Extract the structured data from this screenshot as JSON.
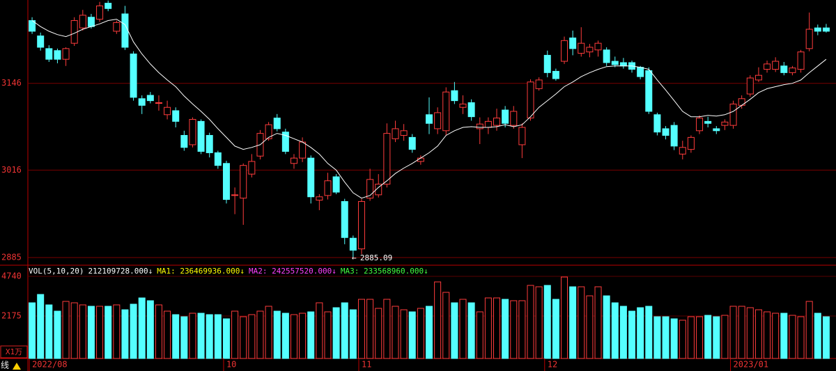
{
  "chart_data": [
    {
      "type": "candlestick",
      "up_color": "#ff3c3c",
      "down_color": "#54ffff",
      "xlim": [
        -0.5,
        94.5
      ],
      "ylim": [
        2874.6,
        3270.8
      ],
      "yticks": [
        3146,
        3016,
        2885
      ],
      "grid": true,
      "open": [
        3240,
        3217,
        3198,
        3195,
        3182,
        3206,
        3229,
        3245,
        3242,
        3266,
        3224,
        3250,
        3190,
        3123,
        3128,
        3116,
        3099,
        3105,
        3068,
        3054,
        3089,
        3068,
        3042,
        3026,
        2978,
        2974,
        3010,
        3037,
        3063,
        3094,
        3073,
        3026,
        3034,
        3034,
        2971,
        2978,
        3006,
        2969,
        2914,
        2898,
        2974,
        2979,
        2995,
        3063,
        3068,
        3065,
        3029,
        3099,
        3078,
        3075,
        3135,
        3110,
        3117,
        3078,
        3080,
        3083,
        3106,
        3083,
        3054,
        3094,
        3138,
        3188,
        3164,
        3179,
        3214,
        3191,
        3193,
        3196,
        3196,
        3179,
        3177,
        3177,
        3170,
        3165,
        3099,
        3078,
        3083,
        3040,
        3047,
        3075,
        3089,
        3078,
        3083,
        3083,
        3113,
        3130,
        3151,
        3167,
        3167,
        3172,
        3162,
        3167,
        3198,
        3229,
        3229
      ],
      "high": [
        3245,
        3222,
        3203,
        3198,
        3200,
        3245,
        3256,
        3250,
        3268,
        3270,
        3240,
        3262,
        3194,
        3128,
        3133,
        3128,
        3120,
        3110,
        3075,
        3095,
        3092,
        3072,
        3045,
        3030,
        2990,
        3026,
        3040,
        3076,
        3088,
        3100,
        3078,
        3040,
        3065,
        3038,
        2980,
        3012,
        3010,
        2973,
        2918,
        2973,
        3018,
        3010,
        3086,
        3090,
        3085,
        3070,
        3038,
        3125,
        3110,
        3140,
        3148,
        3128,
        3122,
        3095,
        3095,
        3108,
        3112,
        3112,
        3086,
        3152,
        3155,
        3195,
        3168,
        3216,
        3225,
        3230,
        3205,
        3210,
        3200,
        3186,
        3184,
        3180,
        3172,
        3170,
        3102,
        3082,
        3088,
        3060,
        3068,
        3098,
        3096,
        3082,
        3092,
        3120,
        3128,
        3158,
        3170,
        3180,
        3185,
        3178,
        3172,
        3196,
        3252,
        3234,
        3235
      ],
      "low": [
        3220,
        3195,
        3178,
        3176,
        3172,
        3202,
        3225,
        3228,
        3238,
        3254,
        3220,
        3196,
        3120,
        3100,
        3116,
        3105,
        3092,
        3080,
        3045,
        3050,
        3040,
        3035,
        3018,
        2966,
        2950,
        2934,
        3005,
        3032,
        3060,
        3074,
        3040,
        3018,
        3028,
        2966,
        2956,
        2972,
        2980,
        2905,
        2885.09,
        2890,
        2970,
        2975,
        2990,
        3058,
        3060,
        3042,
        3024,
        3070,
        3070,
        3068,
        3115,
        3100,
        3090,
        3055,
        3070,
        3075,
        3080,
        3078,
        3034,
        3090,
        3135,
        3155,
        3150,
        3175,
        3188,
        3186,
        3185,
        3186,
        3172,
        3170,
        3168,
        3162,
        3152,
        3100,
        3068,
        3062,
        3046,
        3032,
        3042,
        3070,
        3080,
        3070,
        3076,
        3078,
        3108,
        3126,
        3148,
        3162,
        3163,
        3158,
        3158,
        3162,
        3194,
        3218,
        3222
      ],
      "close": [
        3224,
        3200,
        3182,
        3182,
        3198,
        3240,
        3248,
        3231,
        3262,
        3258,
        3237,
        3200,
        3125,
        3113,
        3120,
        3117,
        3110,
        3089,
        3050,
        3092,
        3044,
        3042,
        3023,
        2972,
        2979,
        3023,
        3029,
        3071,
        3084,
        3078,
        3044,
        3034,
        3058,
        2976,
        2976,
        3000,
        2983,
        2915,
        2896,
        2969,
        3002,
        2995,
        3071,
        3078,
        3075,
        3047,
        3034,
        3086,
        3102,
        3133,
        3120,
        3115,
        3096,
        3085,
        3089,
        3094,
        3086,
        3104,
        3080,
        3148,
        3151,
        3162,
        3153,
        3210,
        3198,
        3206,
        3200,
        3206,
        3177,
        3174,
        3172,
        3167,
        3156,
        3104,
        3073,
        3068,
        3052,
        3050,
        3065,
        3094,
        3086,
        3075,
        3088,
        3115,
        3123,
        3154,
        3158,
        3175,
        3179,
        3162,
        3169,
        3193,
        3227,
        3224,
        3224
      ],
      "ma": {
        "color": "#ffffff",
        "values": [
          3240,
          3231,
          3224,
          3219,
          3216,
          3221,
          3227,
          3231,
          3235,
          3240,
          3242,
          3234,
          3208,
          3190,
          3175,
          3162,
          3151,
          3141,
          3127,
          3115,
          3104,
          3092,
          3078,
          3065,
          3052,
          3047,
          3050,
          3054,
          3065,
          3071,
          3068,
          3063,
          3058,
          3050,
          3040,
          3026,
          3016,
          2998,
          2982,
          2974,
          2978,
          2990,
          3000,
          3011,
          3019,
          3026,
          3034,
          3042,
          3052,
          3068,
          3075,
          3080,
          3081,
          3080,
          3080,
          3081,
          3084,
          3081,
          3084,
          3096,
          3110,
          3120,
          3130,
          3141,
          3148,
          3156,
          3162,
          3167,
          3171,
          3172,
          3172,
          3172,
          3170,
          3167,
          3151,
          3136,
          3120,
          3104,
          3096,
          3096,
          3098,
          3097,
          3099,
          3104,
          3113,
          3122,
          3132,
          3138,
          3141,
          3144,
          3146,
          3151,
          3162,
          3172,
          3182
        ]
      },
      "low_label": {
        "x": 38,
        "value": 2885.09
      }
    },
    {
      "type": "bar",
      "title": "VOL(5,10,20)",
      "legend": [
        {
          "label": "212109728.000↓",
          "color": "#ffffff"
        },
        {
          "label": "MA1: 236469936.000↓",
          "color": "#ffff00"
        },
        {
          "label": "MA2: 242557520.000↓",
          "color": "#ff40ff"
        },
        {
          "label": "MA3: 233568960.000↓",
          "color": "#40ff40"
        }
      ],
      "unit_label": "X1万",
      "mode_label": "线",
      "xlim": [
        -0.5,
        94.5
      ],
      "ylim": [
        -570,
        5370
      ],
      "yticks": [
        4740,
        2175
      ],
      "xticks": [
        {
          "value": 0,
          "label": "2022/08"
        },
        {
          "value": 23,
          "label": "10"
        },
        {
          "value": 39,
          "label": "11"
        },
        {
          "value": 61,
          "label": "12"
        },
        {
          "value": 83,
          "label": "2023/01"
        }
      ],
      "values": [
        3030,
        3570,
        2895,
        2490,
        3120,
        3030,
        2895,
        2805,
        2805,
        2805,
        2895,
        2580,
        2940,
        3345,
        3165,
        2895,
        2490,
        2265,
        2130,
        2355,
        2355,
        2265,
        2265,
        1995,
        2490,
        2130,
        2265,
        2490,
        2805,
        2490,
        2355,
        2265,
        2355,
        2445,
        3030,
        2445,
        2715,
        3030,
        2580,
        3255,
        3255,
        2670,
        3255,
        2805,
        2580,
        2445,
        2670,
        2805,
        4380,
        3705,
        3030,
        3255,
        3030,
        2445,
        3345,
        3345,
        3255,
        3165,
        3165,
        4155,
        4065,
        4155,
        3255,
        4695,
        4065,
        4065,
        3480,
        4065,
        3480,
        3030,
        2805,
        2490,
        2715,
        2805,
        2130,
        2130,
        1995,
        1905,
        2130,
        2130,
        2220,
        2130,
        2220,
        2805,
        2805,
        2715,
        2580,
        2445,
        2355,
        2355,
        2220,
        2130,
        3120,
        2355,
        2130
      ]
    }
  ]
}
